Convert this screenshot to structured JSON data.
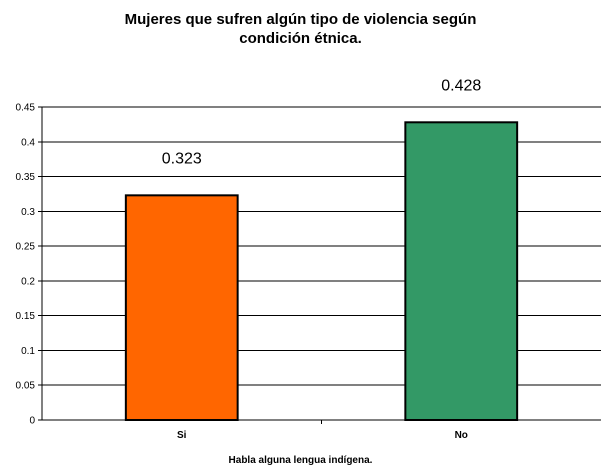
{
  "chart_data": {
    "type": "bar",
    "title_lines": [
      "Mujeres que sufren algún tipo de violencia según",
      "condición étnica."
    ],
    "xlabel": "Habla alguna lengua indígena.",
    "ylabel": "",
    "categories": [
      "Si",
      "No"
    ],
    "values": [
      0.323,
      0.428
    ],
    "value_labels": [
      "0.323",
      "0.428"
    ],
    "bar_colors": [
      "#ff6600",
      "#339966"
    ],
    "ylim": [
      0,
      0.45
    ],
    "yticks": [
      0,
      0.05,
      0.1,
      0.15,
      0.2,
      0.25,
      0.3,
      0.35,
      0.4,
      0.45
    ],
    "ytick_labels": [
      "0",
      "0.05",
      "0.1",
      "0.15",
      "0.2",
      "0.25",
      "0.3",
      "0.35",
      "0.4",
      "0.45"
    ],
    "grid": true,
    "legend": "none"
  }
}
